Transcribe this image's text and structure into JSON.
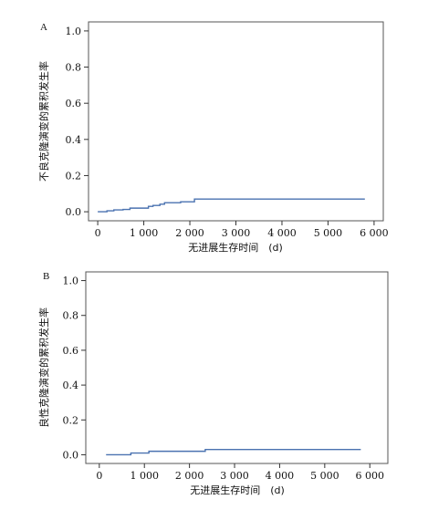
{
  "chart_data": [
    {
      "type": "line",
      "panel_label": "A",
      "xlabel": "无进展生存时间　(d)",
      "ylabel": "不良克隆演变的累积发生率",
      "xlim": [
        -200,
        6200
      ],
      "ylim": [
        -0.05,
        1.05
      ],
      "xticks": [
        0,
        1000,
        2000,
        3000,
        4000,
        5000,
        6000
      ],
      "xtick_labels": [
        "0",
        "1 000",
        "2 000",
        "3 000",
        "4 000",
        "5 000",
        "6 000"
      ],
      "yticks": [
        0.0,
        0.2,
        0.4,
        0.6,
        0.8,
        1.0
      ],
      "ytick_labels": [
        "0.0",
        "0.2",
        "0.4",
        "0.6",
        "0.8",
        "1.0"
      ],
      "grid": false,
      "series": [
        {
          "step": true,
          "color": "#4a72b0",
          "x": [
            0,
            200,
            350,
            550,
            700,
            1100,
            1200,
            1350,
            1450,
            1800,
            2100,
            5800
          ],
          "y": [
            0.0,
            0.005,
            0.01,
            0.013,
            0.02,
            0.03,
            0.035,
            0.042,
            0.05,
            0.055,
            0.07,
            0.07
          ]
        }
      ]
    },
    {
      "type": "line",
      "panel_label": "B",
      "xlabel": "无进展生存时间　(d)",
      "ylabel": "良性克隆演变的累积发生率",
      "xlim": [
        -300,
        6400
      ],
      "ylim": [
        -0.05,
        1.05
      ],
      "xticks": [
        0,
        1000,
        2000,
        3000,
        4000,
        5000,
        6000
      ],
      "xtick_labels": [
        "0",
        "1 000",
        "2 000",
        "3 000",
        "4 000",
        "5 000",
        "6 000"
      ],
      "yticks": [
        0.0,
        0.2,
        0.4,
        0.6,
        0.8,
        1.0
      ],
      "ytick_labels": [
        "0.0",
        "0.2",
        "0.4",
        "0.6",
        "0.8",
        "1.0"
      ],
      "grid": false,
      "series": [
        {
          "step": true,
          "color": "#4a72b0",
          "x": [
            150,
            700,
            1100,
            2350,
            5800
          ],
          "y": [
            0.0,
            0.01,
            0.02,
            0.03,
            0.03
          ]
        }
      ]
    }
  ]
}
